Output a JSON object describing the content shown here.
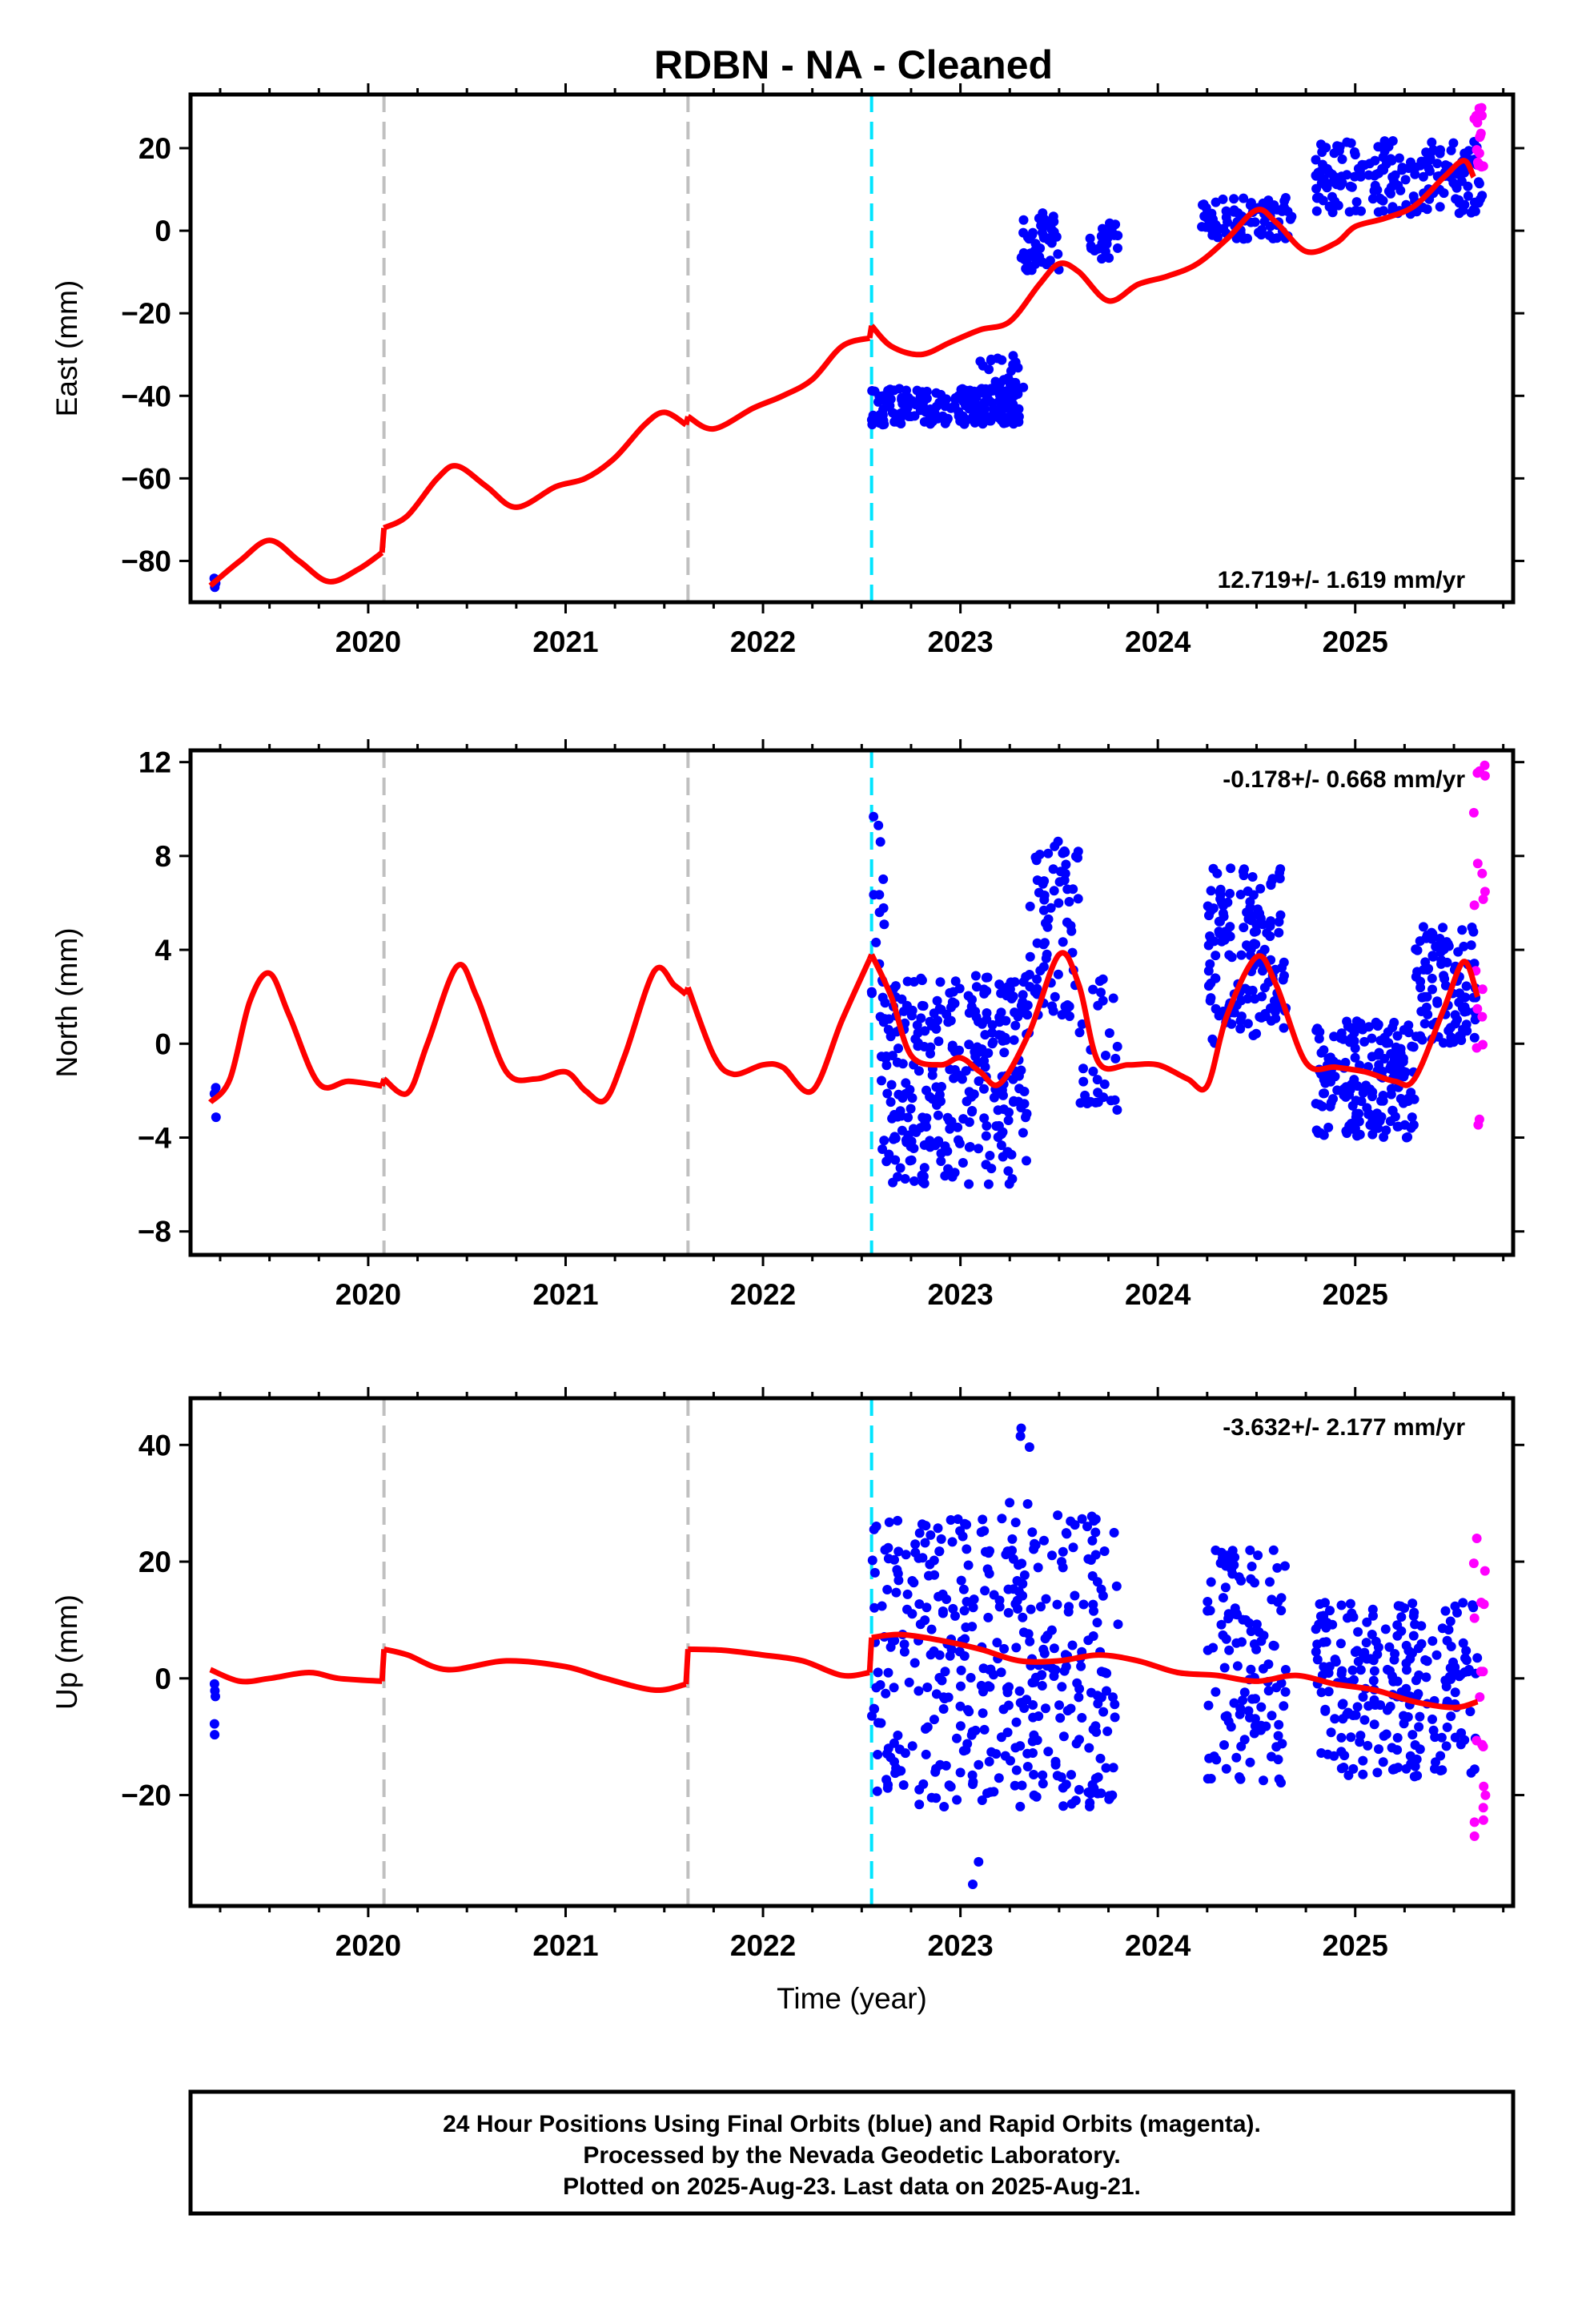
{
  "title": "RDBN  - NA - Cleaned",
  "chart_data": [
    {
      "type": "scatter",
      "ylabel": "East (mm)",
      "xlabel": "",
      "xlim": [
        2019.1,
        2025.8
      ],
      "ylim": [
        -90,
        33
      ],
      "yticks": [
        -80,
        -60,
        -40,
        -20,
        0,
        20
      ],
      "xticks": [
        2020,
        2021,
        2022,
        2023,
        2024,
        2025
      ],
      "rate_label": "12.719+/- 1.619 mm/yr",
      "rate_position": "bottom-right",
      "grid": false,
      "colors": {
        "final": "#0000ff",
        "rapid": "#ff00ff",
        "model": "#ff0000",
        "offset": "#c0c0c0",
        "equipment": "#00e5ff"
      },
      "offsets": [
        2020.08,
        2021.62
      ],
      "equipment_change": [
        2022.55
      ],
      "model_segments": [
        {
          "x": [
            2019.2,
            2019.35,
            2019.5,
            2019.65,
            2019.8,
            2019.95,
            2020.07
          ],
          "y": [
            -86,
            -80,
            -75,
            -80,
            -85,
            -82,
            -78
          ]
        },
        {
          "x": [
            2020.08,
            2020.2,
            2020.35,
            2020.45,
            2020.6,
            2020.75,
            2020.95,
            2021.1,
            2021.25,
            2021.4,
            2021.5,
            2021.61
          ],
          "y": [
            -72,
            -69,
            -60,
            -57,
            -62,
            -67,
            -62,
            -60,
            -55,
            -47,
            -44,
            -47
          ]
        },
        {
          "x": [
            2021.62,
            2021.75,
            2021.95,
            2022.1,
            2022.25,
            2022.4,
            2022.54
          ],
          "y": [
            -45,
            -48,
            -43,
            -40,
            -36,
            -28,
            -26
          ]
        },
        {
          "x": [
            2022.55,
            2022.65,
            2022.8,
            2022.95,
            2023.1,
            2023.25,
            2023.4,
            2023.5,
            2023.6,
            2023.75,
            2023.9,
            2024.05,
            2024.2,
            2024.35,
            2024.5,
            2024.6,
            2024.75,
            2024.9,
            2025.0,
            2025.15,
            2025.3,
            2025.45,
            2025.55,
            2025.6
          ],
          "y": [
            -23,
            -28,
            -30,
            -27,
            -24,
            -22,
            -13,
            -8,
            -10,
            -17,
            -13,
            -11,
            -8,
            -2,
            5,
            2,
            -5,
            -3,
            1,
            3,
            6,
            13,
            17,
            13
          ]
        }
      ],
      "final_clusters": [
        {
          "x0": 2019.22,
          "x1": 2019.23,
          "y0": -87,
          "y1": -84,
          "n": 3
        },
        {
          "x0": 2022.55,
          "x1": 2023.3,
          "y0": -47,
          "y1": -38,
          "n": 200
        },
        {
          "x0": 2023.1,
          "x1": 2023.32,
          "y0": -40,
          "y1": -30,
          "n": 30
        },
        {
          "x0": 2023.3,
          "x1": 2023.5,
          "y0": -10,
          "y1": 5,
          "n": 50
        },
        {
          "x0": 2023.65,
          "x1": 2023.8,
          "y0": -7,
          "y1": 2,
          "n": 25
        },
        {
          "x0": 2024.22,
          "x1": 2024.68,
          "y0": -2,
          "y1": 8,
          "n": 80
        },
        {
          "x0": 2024.8,
          "x1": 2025.65,
          "y0": 4,
          "y1": 22,
          "n": 200
        }
      ],
      "rapid_clusters": [
        {
          "x0": 2025.6,
          "x1": 2025.65,
          "y0": 12,
          "y1": 30,
          "n": 16
        }
      ]
    },
    {
      "type": "scatter",
      "ylabel": "North (mm)",
      "xlabel": "",
      "xlim": [
        2019.1,
        2025.8
      ],
      "ylim": [
        -9,
        12.5
      ],
      "yticks": [
        -8,
        -4,
        0,
        4,
        8,
        12
      ],
      "xticks": [
        2020,
        2021,
        2022,
        2023,
        2024,
        2025
      ],
      "rate_label": "-0.178+/- 0.668 mm/yr",
      "rate_position": "top-right",
      "grid": false,
      "colors": {
        "final": "#0000ff",
        "rapid": "#ff00ff",
        "model": "#ff0000",
        "offset": "#c0c0c0",
        "equipment": "#00e5ff"
      },
      "offsets": [
        2020.08,
        2021.62
      ],
      "equipment_change": [
        2022.55
      ],
      "model_segments": [
        {
          "x": [
            2019.2,
            2019.3,
            2019.4,
            2019.5,
            2019.6,
            2019.75,
            2019.9,
            2020.07
          ],
          "y": [
            -2.5,
            -1.5,
            1.8,
            3.0,
            1.2,
            -1.7,
            -1.6,
            -1.8
          ]
        },
        {
          "x": [
            2020.08,
            2020.2,
            2020.3,
            2020.45,
            2020.55,
            2020.7,
            2020.85,
            2021.0,
            2021.1,
            2021.2,
            2021.3,
            2021.45,
            2021.55,
            2021.61
          ],
          "y": [
            -1.5,
            -2.1,
            0.0,
            3.3,
            2.0,
            -1.2,
            -1.5,
            -1.2,
            -2.0,
            -2.4,
            -0.5,
            3.1,
            2.5,
            2.1
          ]
        },
        {
          "x": [
            2021.62,
            2021.75,
            2021.85,
            2022.0,
            2022.1,
            2022.25,
            2022.4,
            2022.54
          ],
          "y": [
            2.4,
            -0.5,
            -1.3,
            -0.9,
            -1.0,
            -2.0,
            1.0,
            3.6
          ]
        },
        {
          "x": [
            2022.55,
            2022.65,
            2022.75,
            2022.9,
            2023.0,
            2023.1,
            2023.2,
            2023.35,
            2023.5,
            2023.6,
            2023.7,
            2023.85,
            2024.0,
            2024.15,
            2024.25,
            2024.35,
            2024.5,
            2024.6,
            2024.75,
            2024.9,
            2025.05,
            2025.2,
            2025.3,
            2025.45,
            2025.55,
            2025.62
          ],
          "y": [
            3.8,
            2.0,
            -0.5,
            -0.9,
            -0.6,
            -1.2,
            -1.7,
            0.5,
            3.8,
            2.5,
            -0.8,
            -0.9,
            -0.9,
            -1.5,
            -1.8,
            1.2,
            3.7,
            2.5,
            -0.8,
            -1.0,
            -1.2,
            -1.6,
            -1.5,
            1.5,
            3.5,
            2.0
          ]
        }
      ],
      "final_clusters": [
        {
          "x0": 2019.22,
          "x1": 2019.23,
          "y0": -3.6,
          "y1": -1.5,
          "n": 4
        },
        {
          "x0": 2022.55,
          "x1": 2022.62,
          "y0": 1,
          "y1": 10,
          "n": 15
        },
        {
          "x0": 2022.6,
          "x1": 2023.35,
          "y0": -6,
          "y1": 3,
          "n": 300
        },
        {
          "x0": 2023.35,
          "x1": 2023.6,
          "y0": 1,
          "y1": 8.8,
          "n": 70
        },
        {
          "x0": 2023.6,
          "x1": 2023.8,
          "y0": -3,
          "y1": 3,
          "n": 30
        },
        {
          "x0": 2024.25,
          "x1": 2024.65,
          "y0": 0,
          "y1": 7.5,
          "n": 150
        },
        {
          "x0": 2024.8,
          "x1": 2025.3,
          "y0": -4,
          "y1": 1,
          "n": 180
        },
        {
          "x0": 2025.3,
          "x1": 2025.62,
          "y0": 0,
          "y1": 5,
          "n": 100
        }
      ],
      "rapid_clusters": [
        {
          "x0": 2025.6,
          "x1": 2025.66,
          "y0": -3.7,
          "y1": 12.2,
          "n": 18
        }
      ]
    },
    {
      "type": "scatter",
      "ylabel": "Up (mm)",
      "xlabel": "Time (year)",
      "xlim": [
        2019.1,
        2025.8
      ],
      "ylim": [
        -39,
        48
      ],
      "yticks": [
        -20,
        0,
        20,
        40
      ],
      "xticks": [
        2020,
        2021,
        2022,
        2023,
        2024,
        2025
      ],
      "rate_label": "-3.632+/- 2.177 mm/yr",
      "rate_position": "top-right",
      "grid": false,
      "colors": {
        "final": "#0000ff",
        "rapid": "#ff00ff",
        "model": "#ff0000",
        "offset": "#c0c0c0",
        "equipment": "#00e5ff"
      },
      "offsets": [
        2020.08,
        2021.62
      ],
      "equipment_change": [
        2022.55
      ],
      "model_segments": [
        {
          "x": [
            2019.2,
            2019.35,
            2019.5,
            2019.7,
            2019.85,
            2020.07
          ],
          "y": [
            1.5,
            -0.5,
            0.0,
            1.0,
            0.0,
            -0.5
          ]
        },
        {
          "x": [
            2020.08,
            2020.2,
            2020.4,
            2020.7,
            2021.0,
            2021.2,
            2021.45,
            2021.61
          ],
          "y": [
            5.0,
            4.0,
            1.5,
            3.0,
            2.0,
            0.0,
            -2.0,
            -1.0
          ]
        },
        {
          "x": [
            2021.62,
            2021.8,
            2022.0,
            2022.2,
            2022.4,
            2022.54
          ],
          "y": [
            5.0,
            4.8,
            4.0,
            3.0,
            0.5,
            1.0
          ]
        },
        {
          "x": [
            2022.55,
            2022.7,
            2022.9,
            2023.1,
            2023.3,
            2023.5,
            2023.7,
            2023.9,
            2024.1,
            2024.3,
            2024.5,
            2024.7,
            2024.9,
            2025.1,
            2025.3,
            2025.5,
            2025.62
          ],
          "y": [
            7.0,
            7.5,
            6.5,
            5.0,
            3.0,
            3.0,
            4.0,
            3.0,
            1.0,
            0.5,
            -0.5,
            0.5,
            -1.0,
            -2.0,
            -4.0,
            -5.0,
            -4.0
          ]
        }
      ],
      "final_clusters": [
        {
          "x0": 2019.22,
          "x1": 2019.23,
          "y0": -10,
          "y1": 9,
          "n": 5
        },
        {
          "x0": 2022.55,
          "x1": 2023.8,
          "y0": -22,
          "y1": 28,
          "n": 400
        },
        {
          "x0": 2023.2,
          "x1": 2023.35,
          "y0": 28,
          "y1": 46,
          "n": 5
        },
        {
          "x0": 2023.05,
          "x1": 2023.15,
          "y0": -37,
          "y1": -30,
          "n": 2
        },
        {
          "x0": 2024.25,
          "x1": 2024.65,
          "y0": -18,
          "y1": 22,
          "n": 120
        },
        {
          "x0": 2024.8,
          "x1": 2025.62,
          "y0": -17,
          "y1": 13,
          "n": 230
        }
      ],
      "rapid_clusters": [
        {
          "x0": 2025.6,
          "x1": 2025.66,
          "y0": -32,
          "y1": 24,
          "n": 18
        }
      ]
    }
  ],
  "footer": {
    "line1": "24 Hour Positions Using Final Orbits (blue) and Rapid Orbits (magenta).",
    "line2": "Processed by the Nevada Geodetic Laboratory.",
    "line3": "Plotted on 2025-Aug-23. Last data on 2025-Aug-21."
  }
}
